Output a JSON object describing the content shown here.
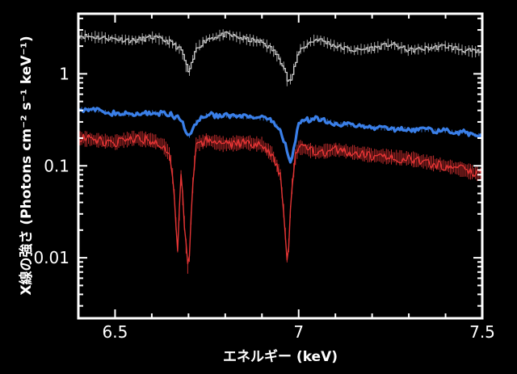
{
  "chart_data": {
    "type": "line",
    "xlabel": "エネルギー (keV)",
    "ylabel": "X線の強さ (Photons cm⁻² s⁻¹ keV⁻¹)",
    "xlim": [
      6.4,
      7.5
    ],
    "ylim": [
      0.0022,
      4.5
    ],
    "y_scale": "log",
    "x_ticks": [
      {
        "v": 6.5,
        "label": "6.5"
      },
      {
        "v": 7.0,
        "label": "7"
      },
      {
        "v": 7.5,
        "label": "7.5"
      }
    ],
    "y_ticks": [
      {
        "v": 1,
        "label": "1"
      },
      {
        "v": 0.1,
        "label": "0.1"
      },
      {
        "v": 0.01,
        "label": "0.01"
      }
    ],
    "grid": false,
    "legend": "none",
    "series": [
      {
        "color": "#c8c8c8",
        "style": "step-with-errorbars",
        "x": [
          6.4,
          6.45,
          6.5,
          6.55,
          6.6,
          6.62,
          6.65,
          6.68,
          6.7,
          6.72,
          6.75,
          6.8,
          6.85,
          6.9,
          6.93,
          6.96,
          6.97,
          6.98,
          7.0,
          7.03,
          7.05,
          7.1,
          7.15,
          7.2,
          7.25,
          7.3,
          7.35,
          7.4,
          7.45,
          7.5
        ],
        "y": [
          2.6,
          2.5,
          2.4,
          2.3,
          2.5,
          2.4,
          2.2,
          1.8,
          1.0,
          1.9,
          2.4,
          2.7,
          2.4,
          2.2,
          1.8,
          1.2,
          0.8,
          0.9,
          1.8,
          2.2,
          2.4,
          2.0,
          1.8,
          1.9,
          2.1,
          1.8,
          1.9,
          2.0,
          1.8,
          1.7
        ]
      },
      {
        "color": "#3a7fe8",
        "style": "line",
        "x": [
          6.4,
          6.45,
          6.5,
          6.55,
          6.6,
          6.65,
          6.68,
          6.7,
          6.72,
          6.75,
          6.8,
          6.85,
          6.9,
          6.93,
          6.95,
          6.97,
          6.98,
          6.99,
          7.0,
          7.05,
          7.1,
          7.2,
          7.3,
          7.4,
          7.45,
          7.5
        ],
        "y": [
          0.42,
          0.4,
          0.37,
          0.36,
          0.38,
          0.36,
          0.32,
          0.2,
          0.3,
          0.36,
          0.35,
          0.34,
          0.33,
          0.3,
          0.25,
          0.14,
          0.11,
          0.18,
          0.3,
          0.33,
          0.29,
          0.26,
          0.25,
          0.24,
          0.23,
          0.21
        ]
      },
      {
        "color": "#e53535",
        "style": "line-with-errorbars",
        "x": [
          6.4,
          6.45,
          6.5,
          6.55,
          6.6,
          6.63,
          6.65,
          6.66,
          6.67,
          6.68,
          6.69,
          6.7,
          6.71,
          6.72,
          6.75,
          6.8,
          6.85,
          6.9,
          6.93,
          6.95,
          6.96,
          6.97,
          6.98,
          6.99,
          7.0,
          7.05,
          7.1,
          7.2,
          7.3,
          7.4,
          7.45,
          7.5
        ],
        "y": [
          0.2,
          0.19,
          0.18,
          0.2,
          0.19,
          0.17,
          0.13,
          0.06,
          0.012,
          0.08,
          0.02,
          0.006,
          0.05,
          0.17,
          0.19,
          0.17,
          0.18,
          0.17,
          0.13,
          0.08,
          0.03,
          0.008,
          0.05,
          0.12,
          0.16,
          0.14,
          0.15,
          0.13,
          0.12,
          0.1,
          0.09,
          0.08
        ]
      }
    ]
  }
}
